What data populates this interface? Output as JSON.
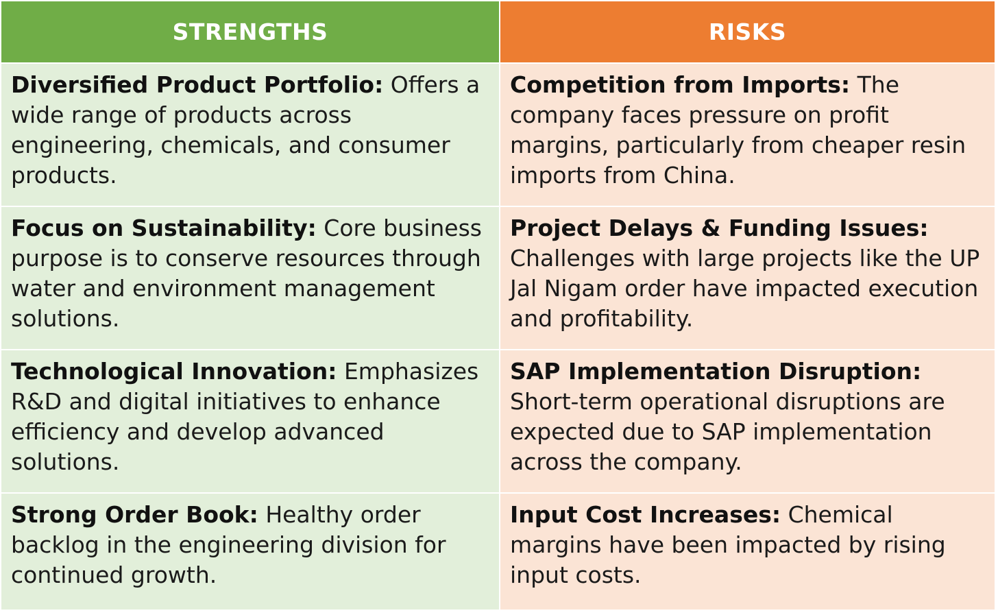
{
  "headers": {
    "strengths": "STRENGTHS",
    "risks": "RISKS"
  },
  "strengths": [
    {
      "title": "Diversified Product Portfolio:",
      "text": " Offers a wide range of products across engineering, chemicals, and consumer products."
    },
    {
      "title": "Focus on Sustainability:",
      "text": " Core business purpose is to conserve resources through water and environment management solutions."
    },
    {
      "title": "Technological Innovation:",
      "text": " Emphasizes R&D and digital initiatives to enhance efficiency and develop advanced solutions."
    },
    {
      "title": "Strong Order Book:",
      "text": " Healthy order backlog in the engineering division for continued growth."
    }
  ],
  "risks": [
    {
      "title": "Competition from Imports:",
      "text": " The company faces pressure on profit margins, particularly from cheaper resin imports from China."
    },
    {
      "title": "Project Delays & Funding Issues:",
      "text": " Challenges with large projects like the UP Jal Nigam order have impacted execution and profitability."
    },
    {
      "title": "SAP Implementation Disruption:",
      "text": " Short-term operational disruptions are expected due to SAP implementation across the company."
    },
    {
      "title": "Input Cost Increases:",
      "text": " Chemical margins have been impacted by rising input costs."
    }
  ],
  "colors": {
    "strengths_header": "#70ad47",
    "risks_header": "#ed7d31",
    "strengths_cell": "#e2efda",
    "risks_cell": "#fbe4d5"
  }
}
